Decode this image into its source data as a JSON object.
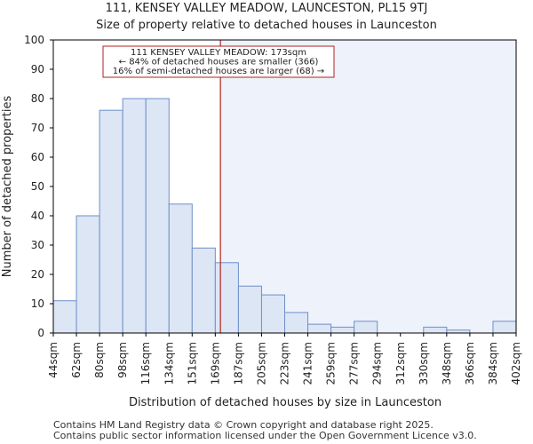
{
  "chart_data": {
    "type": "bar",
    "title": "111, KENSEY VALLEY MEADOW, LAUNCESTON, PL15 9TJ",
    "subtitle": "Size of property relative to detached houses in Launceston",
    "xlabel": "Distribution of detached houses by size in Launceston",
    "ylabel": "Number of detached properties",
    "bin_edges": [
      44,
      62,
      80,
      98,
      116,
      134,
      151,
      169,
      187,
      205,
      223,
      241,
      259,
      277,
      294,
      312,
      330,
      348,
      366,
      384,
      402
    ],
    "x_tick_labels": [
      "44sqm",
      "62sqm",
      "80sqm",
      "98sqm",
      "116sqm",
      "134sqm",
      "151sqm",
      "169sqm",
      "187sqm",
      "205sqm",
      "223sqm",
      "241sqm",
      "259sqm",
      "277sqm",
      "294sqm",
      "312sqm",
      "330sqm",
      "348sqm",
      "366sqm",
      "384sqm",
      "402sqm"
    ],
    "values": [
      11,
      40,
      76,
      80,
      80,
      44,
      29,
      24,
      16,
      13,
      7,
      3,
      2,
      4,
      0,
      0,
      2,
      1,
      0,
      4
    ],
    "ylim": [
      0,
      100
    ],
    "y_ticks": [
      0,
      10,
      20,
      30,
      40,
      50,
      60,
      70,
      80,
      90,
      100
    ],
    "property_marker": {
      "value": 173,
      "label": "111 KENSEY VALLEY MEADOW: 173sqm"
    },
    "annotation_lines": [
      "111 KENSEY VALLEY MEADOW: 173sqm",
      "← 84% of detached houses are smaller (366)",
      "16% of semi-detached houses are larger (68) →"
    ],
    "colors": {
      "bar_fill": "#dce6f5",
      "bar_stroke": "#6e8fc9",
      "marker": "#b22222",
      "highlight": "#eef2fb",
      "annotation_border": "#b22222"
    }
  },
  "footer": {
    "line1": "Contains HM Land Registry data © Crown copyright and database right 2025.",
    "line2": "Contains public sector information licensed under the Open Government Licence v3.0."
  }
}
